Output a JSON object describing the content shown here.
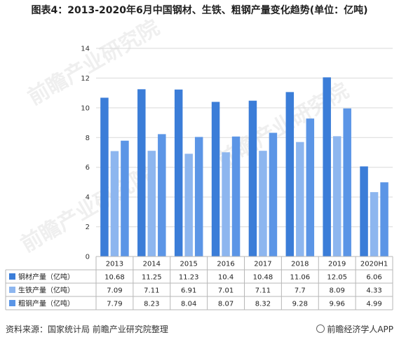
{
  "title": "图表4：2013-2020年6月中国钢材、生铁、粗钢产量变化趋势(单位：亿吨)",
  "watermark": "前瞻产业研究院",
  "footer": {
    "source": "资料来源：国家统计局 前瞻产业研究院整理",
    "brand": "前瞻经济学人APP"
  },
  "chart_data": {
    "type": "bar",
    "categories": [
      "2013",
      "2014",
      "2015",
      "2016",
      "2017",
      "2018",
      "2019",
      "2020H1"
    ],
    "ylim": [
      0,
      14
    ],
    "yticks": [
      0,
      2,
      4,
      6,
      8,
      10,
      12,
      14
    ],
    "grid": true,
    "legend": "data-table",
    "series": [
      {
        "name": "钢材产量（亿吨）",
        "color": "#3b7dd8",
        "values": [
          10.68,
          11.25,
          11.23,
          10.4,
          10.48,
          11.06,
          12.05,
          6.06
        ],
        "labels": [
          "10.68",
          "11.25",
          "11.23",
          "10.4",
          "10.48",
          "11.06",
          "12.05",
          "6.06"
        ]
      },
      {
        "name": "生铁产量（亿吨）",
        "color": "#8db6ef",
        "values": [
          7.09,
          7.11,
          6.91,
          7.01,
          7.11,
          7.7,
          8.09,
          4.33
        ],
        "labels": [
          "7.09",
          "7.11",
          "6.91",
          "7.01",
          "7.11",
          "7.7",
          "8.09",
          "4.33"
        ]
      },
      {
        "name": "粗钢产量（亿吨）",
        "color": "#5b95e6",
        "values": [
          7.79,
          8.23,
          8.04,
          8.07,
          8.32,
          9.28,
          9.96,
          4.99
        ],
        "labels": [
          "7.79",
          "8.23",
          "8.04",
          "8.07",
          "8.32",
          "9.28",
          "9.96",
          "4.99"
        ]
      }
    ]
  }
}
